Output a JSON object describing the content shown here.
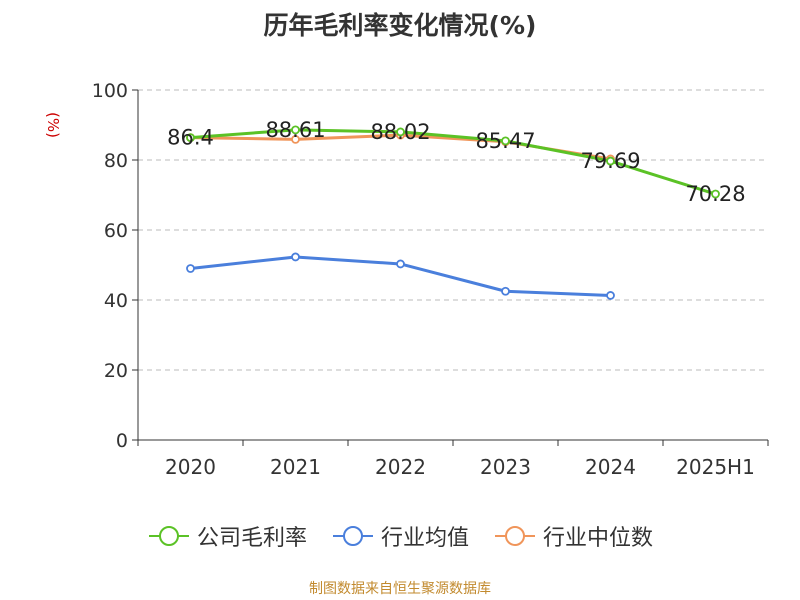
{
  "title": "历年毛利率变化情况(%)",
  "source": "制图数据来自恒生聚源数据库",
  "chart_data": {
    "type": "line",
    "title": "历年毛利率变化情况(%)",
    "ylabel": "(%)",
    "ylim": [
      0,
      100
    ],
    "yticks": [
      0,
      20,
      40,
      60,
      80,
      100
    ],
    "grid": true,
    "legend_position": "bottom",
    "categories": [
      "2020",
      "2021",
      "2022",
      "2023",
      "2024",
      "2025H1"
    ],
    "series": [
      {
        "name": "公司毛利率",
        "color": "#5bc226",
        "values": [
          86.4,
          88.61,
          88.02,
          85.47,
          79.69,
          70.28
        ],
        "labels": [
          "86.4",
          "88.61",
          "88.02",
          "85.47",
          "79.69",
          "70.28"
        ]
      },
      {
        "name": "行业均值",
        "color": "#4a7fdc",
        "values": [
          49.0,
          52.3,
          50.3,
          42.5,
          41.3,
          null
        ]
      },
      {
        "name": "行业中位数",
        "color": "#f0955a",
        "values": [
          86.4,
          85.9,
          87.1,
          85.2,
          80.3,
          null
        ]
      }
    ]
  }
}
